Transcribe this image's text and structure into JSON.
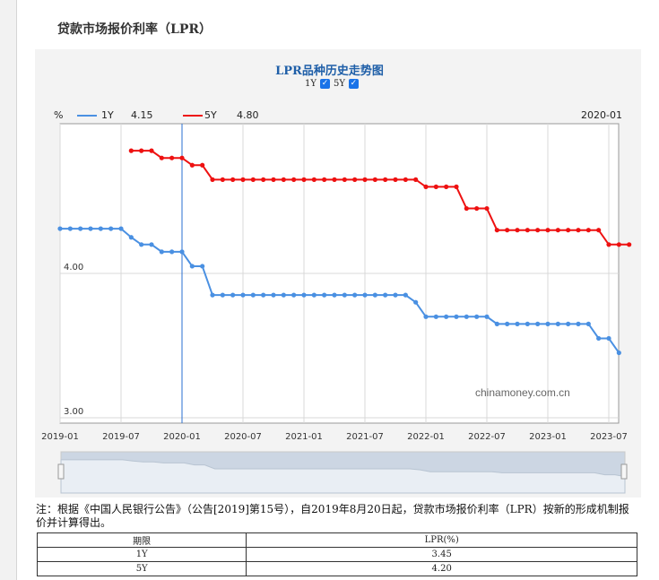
{
  "page_title": "贷款市场报价利率（LPR）",
  "chart_title": "LPR品种历史走势图",
  "toggles": [
    {
      "label": "1Y",
      "checked": true
    },
    {
      "label": "5Y",
      "checked": true
    }
  ],
  "legend": {
    "unit": "%",
    "date": "2020-01",
    "items": [
      {
        "name": "1Y",
        "value": "4.15",
        "color": "#4a90e2"
      },
      {
        "name": "5Y",
        "value": "4.80",
        "color": "#ee1111"
      }
    ]
  },
  "watermark": "chinamoney.com.cn",
  "note": "注：根据《中国人民银行公告》（公告[2019]第15号），自2019年8月20日起，贷款市场报价利率（LPR）按新的形成机制报价并计算得出。",
  "table": {
    "headers": [
      "期限",
      "LPR(%)"
    ],
    "rows": [
      [
        "1Y",
        "3.45"
      ],
      [
        "5Y",
        "4.20"
      ]
    ]
  },
  "chart_data": {
    "type": "line",
    "x_ticks": [
      "2019-01",
      "2019-07",
      "2020-01",
      "2020-07",
      "2021-01",
      "2021-07",
      "2022-01",
      "2022-07",
      "2023-01",
      "2023-07"
    ],
    "y_ticks": [
      "4.00",
      "3.00"
    ],
    "ylim": [
      3.0,
      4.8
    ],
    "crosshair_x": "2020-01",
    "series": [
      {
        "name": "1Y",
        "color": "#4a90e2",
        "points": [
          [
            "2019-01",
            4.31
          ],
          [
            "2019-02",
            4.31
          ],
          [
            "2019-03",
            4.31
          ],
          [
            "2019-04",
            4.31
          ],
          [
            "2019-05",
            4.31
          ],
          [
            "2019-06",
            4.31
          ],
          [
            "2019-07",
            4.31
          ],
          [
            "2019-08",
            4.25
          ],
          [
            "2019-09",
            4.2
          ],
          [
            "2019-10",
            4.2
          ],
          [
            "2019-11",
            4.15
          ],
          [
            "2019-12",
            4.15
          ],
          [
            "2020-01",
            4.15
          ],
          [
            "2020-02",
            4.05
          ],
          [
            "2020-03",
            4.05
          ],
          [
            "2020-04",
            3.85
          ],
          [
            "2020-05",
            3.85
          ],
          [
            "2020-06",
            3.85
          ],
          [
            "2020-07",
            3.85
          ],
          [
            "2020-08",
            3.85
          ],
          [
            "2020-09",
            3.85
          ],
          [
            "2020-10",
            3.85
          ],
          [
            "2020-11",
            3.85
          ],
          [
            "2020-12",
            3.85
          ],
          [
            "2021-01",
            3.85
          ],
          [
            "2021-02",
            3.85
          ],
          [
            "2021-03",
            3.85
          ],
          [
            "2021-04",
            3.85
          ],
          [
            "2021-05",
            3.85
          ],
          [
            "2021-06",
            3.85
          ],
          [
            "2021-07",
            3.85
          ],
          [
            "2021-08",
            3.85
          ],
          [
            "2021-09",
            3.85
          ],
          [
            "2021-10",
            3.85
          ],
          [
            "2021-11",
            3.85
          ],
          [
            "2021-12",
            3.8
          ],
          [
            "2022-01",
            3.7
          ],
          [
            "2022-02",
            3.7
          ],
          [
            "2022-03",
            3.7
          ],
          [
            "2022-04",
            3.7
          ],
          [
            "2022-05",
            3.7
          ],
          [
            "2022-06",
            3.7
          ],
          [
            "2022-07",
            3.7
          ],
          [
            "2022-08",
            3.65
          ],
          [
            "2022-09",
            3.65
          ],
          [
            "2022-10",
            3.65
          ],
          [
            "2022-11",
            3.65
          ],
          [
            "2022-12",
            3.65
          ],
          [
            "2023-01",
            3.65
          ],
          [
            "2023-02",
            3.65
          ],
          [
            "2023-03",
            3.65
          ],
          [
            "2023-04",
            3.65
          ],
          [
            "2023-05",
            3.65
          ],
          [
            "2023-06",
            3.55
          ],
          [
            "2023-07",
            3.55
          ],
          [
            "2023-08",
            3.45
          ]
        ]
      },
      {
        "name": "5Y",
        "color": "#ee1111",
        "points": [
          [
            "2019-08",
            4.85
          ],
          [
            "2019-09",
            4.85
          ],
          [
            "2019-10",
            4.85
          ],
          [
            "2019-11",
            4.8
          ],
          [
            "2019-12",
            4.8
          ],
          [
            "2020-01",
            4.8
          ],
          [
            "2020-02",
            4.75
          ],
          [
            "2020-03",
            4.75
          ],
          [
            "2020-04",
            4.65
          ],
          [
            "2020-05",
            4.65
          ],
          [
            "2020-06",
            4.65
          ],
          [
            "2020-07",
            4.65
          ],
          [
            "2020-08",
            4.65
          ],
          [
            "2020-09",
            4.65
          ],
          [
            "2020-10",
            4.65
          ],
          [
            "2020-11",
            4.65
          ],
          [
            "2020-12",
            4.65
          ],
          [
            "2021-01",
            4.65
          ],
          [
            "2021-02",
            4.65
          ],
          [
            "2021-03",
            4.65
          ],
          [
            "2021-04",
            4.65
          ],
          [
            "2021-05",
            4.65
          ],
          [
            "2021-06",
            4.65
          ],
          [
            "2021-07",
            4.65
          ],
          [
            "2021-08",
            4.65
          ],
          [
            "2021-09",
            4.65
          ],
          [
            "2021-10",
            4.65
          ],
          [
            "2021-11",
            4.65
          ],
          [
            "2021-12",
            4.65
          ],
          [
            "2022-01",
            4.6
          ],
          [
            "2022-02",
            4.6
          ],
          [
            "2022-03",
            4.6
          ],
          [
            "2022-04",
            4.6
          ],
          [
            "2022-05",
            4.45
          ],
          [
            "2022-06",
            4.45
          ],
          [
            "2022-07",
            4.45
          ],
          [
            "2022-08",
            4.3
          ],
          [
            "2022-09",
            4.3
          ],
          [
            "2022-10",
            4.3
          ],
          [
            "2022-11",
            4.3
          ],
          [
            "2022-12",
            4.3
          ],
          [
            "2023-01",
            4.3
          ],
          [
            "2023-02",
            4.3
          ],
          [
            "2023-03",
            4.3
          ],
          [
            "2023-04",
            4.3
          ],
          [
            "2023-05",
            4.3
          ],
          [
            "2023-06",
            4.3
          ],
          [
            "2023-07",
            4.2
          ],
          [
            "2023-08",
            4.2
          ],
          [
            "2023-09",
            4.2
          ]
        ]
      }
    ]
  }
}
